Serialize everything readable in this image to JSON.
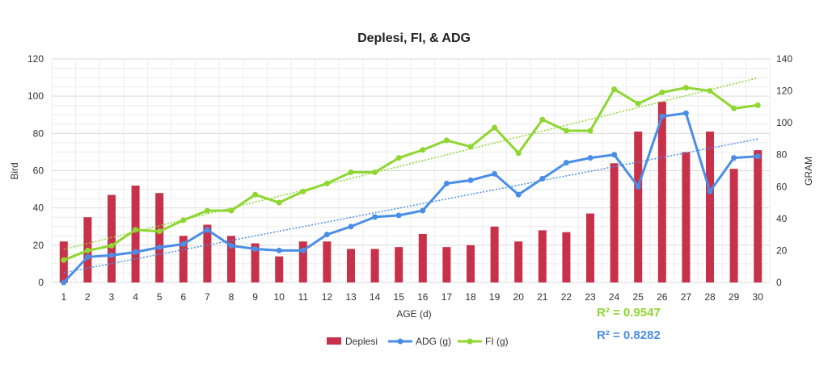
{
  "chart_data": {
    "type": "bar+line",
    "title": "Deplesi, FI, & ADG",
    "xlabel": "AGE (d)",
    "ylabel": "Bird",
    "y2label": "GRAM",
    "ylim": [
      0,
      120
    ],
    "y2lim": [
      0,
      140
    ],
    "yticks": [
      "0",
      "20",
      "40",
      "60",
      "80",
      "100",
      "120"
    ],
    "y2ticks": [
      "0",
      "20",
      "40",
      "60",
      "80",
      "100",
      "120",
      "140"
    ],
    "categories": [
      "1",
      "2",
      "3",
      "4",
      "5",
      "6",
      "7",
      "8",
      "9",
      "10",
      "11",
      "12",
      "13",
      "14",
      "15",
      "16",
      "17",
      "18",
      "19",
      "20",
      "21",
      "22",
      "23",
      "24",
      "25",
      "26",
      "27",
      "28",
      "29",
      "30"
    ],
    "grid": true,
    "legend_position": "bottom",
    "series": [
      {
        "name": "Deplesi",
        "type": "bar",
        "axis": "left",
        "color": "#c8314a",
        "values": [
          22,
          35,
          47,
          52,
          48,
          25,
          31,
          25,
          21,
          14,
          22,
          22,
          18,
          18,
          19,
          26,
          19,
          20,
          30,
          22,
          28,
          27,
          37,
          64,
          81,
          97,
          70,
          81,
          61,
          71
        ]
      },
      {
        "name": "ADG (g)",
        "type": "line",
        "axis": "right",
        "color": "#4a8ee6",
        "values": [
          0,
          16,
          17,
          19,
          22,
          24,
          33,
          23,
          21,
          20,
          20,
          30,
          35,
          41,
          42,
          45,
          62,
          64,
          68,
          55,
          65,
          75,
          78,
          80,
          60,
          104,
          106,
          57,
          78,
          79
        ]
      },
      {
        "name": "FI (g)",
        "type": "line",
        "axis": "right",
        "color": "#8ed630",
        "values": [
          14,
          20,
          23,
          33,
          32,
          39,
          45,
          45,
          55,
          50,
          57,
          62,
          69,
          69,
          78,
          83,
          89,
          85,
          97,
          81,
          102,
          95,
          95,
          121,
          112,
          119,
          122,
          120,
          109,
          111
        ]
      }
    ],
    "annotations": [
      {
        "text": "R² = 0.9547",
        "color": "#8ed630"
      },
      {
        "text": "R² = 0.8282",
        "color": "#4a8ee6"
      }
    ]
  }
}
